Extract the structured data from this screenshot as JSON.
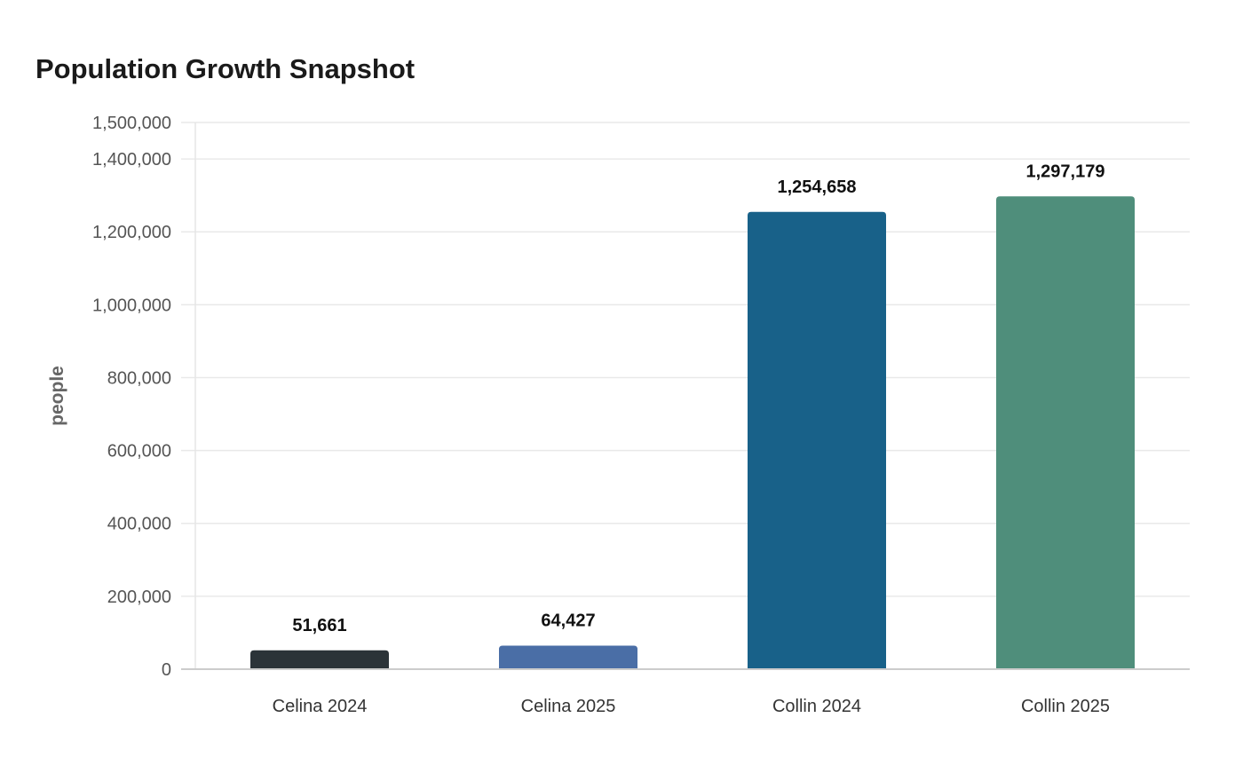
{
  "chart_data": {
    "type": "bar",
    "title": "Population Growth Snapshot",
    "xlabel": "",
    "ylabel": "people",
    "categories": [
      "Celina 2024",
      "Celina 2025",
      "Collin 2024",
      "Collin 2025"
    ],
    "values": [
      51661,
      64427,
      1254658,
      1297179
    ],
    "value_labels": [
      "51,661",
      "64,427",
      "1,254,658",
      "1,297,179"
    ],
    "colors": [
      "#2b3338",
      "#4a6ea6",
      "#186189",
      "#4f8e7b"
    ],
    "ylim": [
      0,
      1500000
    ],
    "yticks": [
      0,
      200000,
      400000,
      600000,
      800000,
      1000000,
      1200000,
      1400000,
      1500000
    ],
    "ytick_labels": [
      "0",
      "200,000",
      "400,000",
      "600,000",
      "800,000",
      "1,000,000",
      "1,200,000",
      "1,400,000",
      "1,500,000"
    ],
    "grid": true,
    "legend": "none"
  }
}
